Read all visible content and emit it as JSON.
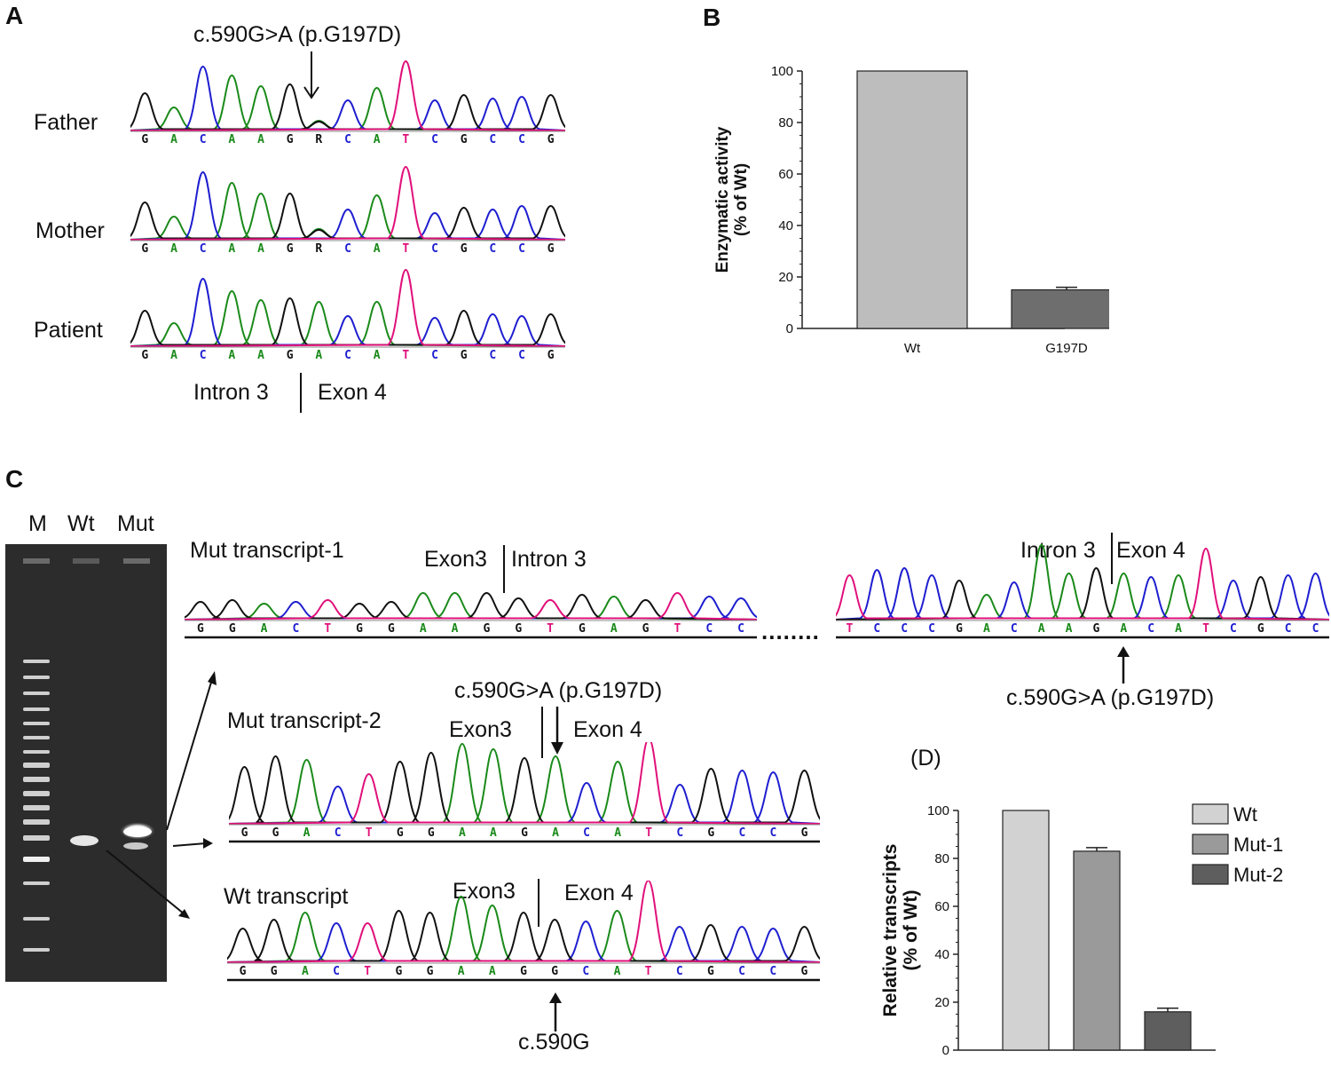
{
  "panelA": {
    "letter": "A",
    "mutation": "c.590G>A (p.G197D)",
    "rows": [
      {
        "label": "Father",
        "bases": [
          "G",
          "A",
          "C",
          "A",
          "A",
          "G",
          "R",
          "C",
          "A",
          "T",
          "C",
          "G",
          "C",
          "C",
          "G"
        ]
      },
      {
        "label": "Mother",
        "bases": [
          "G",
          "A",
          "C",
          "A",
          "A",
          "G",
          "R",
          "C",
          "A",
          "T",
          "C",
          "G",
          "C",
          "C",
          "G"
        ]
      },
      {
        "label": "Patient",
        "bases": [
          "G",
          "A",
          "C",
          "A",
          "A",
          "G",
          "A",
          "C",
          "A",
          "T",
          "C",
          "G",
          "C",
          "C",
          "G"
        ]
      }
    ],
    "intron_label": "Intron 3",
    "exon_label": "Exon 4"
  },
  "panelB": {
    "letter": "B",
    "chart_data": {
      "type": "bar",
      "categories": [
        "Wt",
        "G197D"
      ],
      "values": [
        100,
        15
      ],
      "errors": [
        0,
        1
      ],
      "colors": [
        "#bdbdbd",
        "#6e6e6e"
      ],
      "ylabel_line1": "Enzymatic activity",
      "ylabel_line2": "(% of Wt)",
      "ylim": [
        0,
        100
      ],
      "yticks": [
        "0",
        "20",
        "40",
        "60",
        "80",
        "100"
      ]
    }
  },
  "panelC": {
    "letter": "C",
    "gel": {
      "lanes": [
        "M",
        "Wt",
        "Mut"
      ]
    },
    "mut1": {
      "title": "Mut transcript-1",
      "bases_left": [
        "G",
        "G",
        "A",
        "C",
        "T",
        "G",
        "G",
        "A",
        "A",
        "G",
        "G",
        "T",
        "G",
        "A",
        "G",
        "T",
        "C",
        "C"
      ],
      "left_label_a": "Exon3",
      "left_label_b": "Intron 3",
      "ellipsis": "........",
      "bases_right": [
        "T",
        "C",
        "C",
        "C",
        "G",
        "A",
        "C",
        "A",
        "A",
        "G",
        "A",
        "C",
        "A",
        "T",
        "C",
        "G",
        "C",
        "C"
      ],
      "right_label_a": "Intron 3",
      "right_label_b": "Exon 4",
      "mutation": "c.590G>A (p.G197D)"
    },
    "mut2": {
      "title": "Mut transcript-2",
      "bases": [
        "G",
        "G",
        "A",
        "C",
        "T",
        "G",
        "G",
        "A",
        "A",
        "G",
        "A",
        "C",
        "A",
        "T",
        "C",
        "G",
        "C",
        "C",
        "G"
      ],
      "label_a": "Exon3",
      "label_b": "Exon 4",
      "mutation": "c.590G>A (p.G197D)"
    },
    "wt": {
      "title": "Wt transcript",
      "bases": [
        "G",
        "G",
        "A",
        "C",
        "T",
        "G",
        "G",
        "A",
        "A",
        "G",
        "G",
        "C",
        "A",
        "T",
        "C",
        "G",
        "C",
        "C",
        "G"
      ],
      "label_a": "Exon3",
      "label_b": "Exon 4",
      "site": "c.590G"
    }
  },
  "panelD": {
    "letter": "(D)",
    "chart_data": {
      "type": "bar",
      "categories": [
        "Wt",
        "Mut-1",
        "Mut-2"
      ],
      "values": [
        100,
        83,
        16
      ],
      "errors": [
        0,
        1.5,
        1.5
      ],
      "colors": [
        "#d2d2d2",
        "#9a9a9a",
        "#5e5e5e"
      ],
      "legend": [
        "Wt",
        "Mut-1",
        "Mut-2"
      ],
      "ylabel_line1": "Relative transcripts",
      "ylabel_line2": "(% of Wt)",
      "ylim": [
        0,
        100
      ],
      "yticks": [
        "0",
        "20",
        "40",
        "60",
        "80",
        "100"
      ]
    }
  },
  "colors": {
    "A": "#1a8a1a",
    "C": "#1e1ed0",
    "G": "#111111",
    "T": "#e0107a",
    "R": "#111111"
  }
}
